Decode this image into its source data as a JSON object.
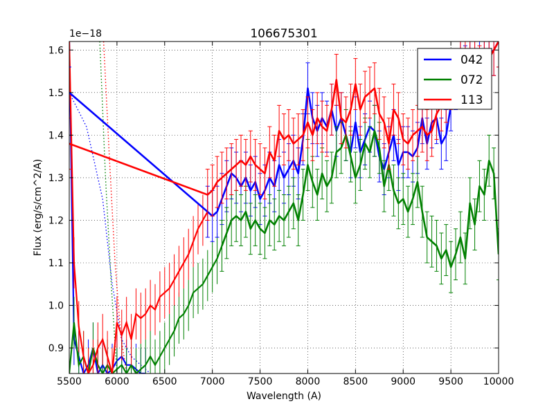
{
  "chart_data": {
    "type": "line",
    "title": "106675301",
    "xlabel": "Wavelength (A)",
    "ylabel": "Flux (erg/s/cm^2/A)",
    "y_offset_label": "1e−18",
    "xlim": [
      5500,
      10000
    ],
    "ylim": [
      0.84,
      1.62
    ],
    "xticks": [
      5500,
      6000,
      6500,
      7000,
      7500,
      8000,
      8500,
      9000,
      9500,
      10000
    ],
    "yticks": [
      0.9,
      1.0,
      1.1,
      1.2,
      1.3,
      1.4,
      1.5,
      1.6
    ],
    "ytick_labels": [
      "0.9",
      "1.0",
      "1.1",
      "1.2",
      "1.3",
      "1.4",
      "1.5",
      "1.6"
    ],
    "grid": true,
    "legend_position": "top-right",
    "series": [
      {
        "name": "042",
        "color": "#0000ff",
        "x": [
          5500,
          6950,
          7000,
          7050,
          7100,
          7150,
          7200,
          7250,
          7300,
          7350,
          7400,
          7450,
          7500,
          7550,
          7600,
          7650,
          7700,
          7750,
          7800,
          7850,
          7900,
          7950,
          8000,
          8050,
          8100,
          8150,
          8200,
          8250,
          8300,
          8350,
          8400,
          8450,
          8500,
          8550,
          8600,
          8650,
          8700,
          8750,
          8800,
          8850,
          8900,
          8950,
          9000,
          9050,
          9100,
          9150,
          9200,
          9250,
          9300,
          9350,
          9400,
          9450,
          9500,
          9550,
          9600,
          9650,
          9700,
          9750,
          9800,
          9850,
          9900,
          9950,
          10000
        ],
        "y": [
          1.5,
          1.22,
          1.21,
          1.22,
          1.25,
          1.28,
          1.31,
          1.3,
          1.28,
          1.3,
          1.27,
          1.29,
          1.25,
          1.27,
          1.3,
          1.28,
          1.33,
          1.3,
          1.32,
          1.34,
          1.31,
          1.39,
          1.51,
          1.44,
          1.41,
          1.44,
          1.42,
          1.46,
          1.41,
          1.44,
          1.4,
          1.36,
          1.43,
          1.36,
          1.39,
          1.42,
          1.41,
          1.35,
          1.32,
          1.36,
          1.4,
          1.33,
          1.36,
          1.36,
          1.35,
          1.37,
          1.44,
          1.38,
          1.43,
          1.44,
          1.38,
          1.4,
          1.47,
          1.52,
          1.57,
          1.55,
          1.58,
          1.59,
          1.56,
          1.58,
          1.59,
          1.6,
          1.62
        ],
        "err": 0.06
      },
      {
        "name": "072",
        "color": "#008000",
        "x": [
          7100,
          7150,
          7200,
          7250,
          7300,
          7350,
          7400,
          7450,
          7500,
          7550,
          7600,
          7650,
          7700,
          7750,
          7800,
          7850,
          7900,
          7950,
          8000,
          8050,
          8100,
          8150,
          8200,
          8250,
          8300,
          8350,
          8400,
          8450,
          8500,
          8550,
          8600,
          8650,
          8700,
          8750,
          8800,
          8850,
          8900,
          8950,
          9000,
          9050,
          9100,
          9150,
          9200,
          9250,
          9300,
          9350,
          9400,
          9450,
          9500,
          9550,
          9600,
          9650,
          9700,
          9750,
          9800,
          9850,
          9900,
          9950,
          10000
        ],
        "y": [
          1.14,
          1.17,
          1.2,
          1.21,
          1.2,
          1.22,
          1.18,
          1.2,
          1.18,
          1.17,
          1.2,
          1.19,
          1.21,
          1.2,
          1.22,
          1.24,
          1.2,
          1.26,
          1.33,
          1.29,
          1.26,
          1.31,
          1.28,
          1.3,
          1.36,
          1.37,
          1.4,
          1.35,
          1.3,
          1.33,
          1.38,
          1.36,
          1.41,
          1.37,
          1.28,
          1.33,
          1.27,
          1.24,
          1.25,
          1.22,
          1.25,
          1.29,
          1.22,
          1.16,
          1.15,
          1.14,
          1.11,
          1.13,
          1.09,
          1.12,
          1.16,
          1.11,
          1.24,
          1.19,
          1.28,
          1.26,
          1.34,
          1.31,
          1.12
        ],
        "err": 0.06
      },
      {
        "name": "113",
        "color": "#ff0000",
        "x": [
          5500,
          6950,
          7000,
          7050,
          7100,
          7150,
          7200,
          7250,
          7300,
          7350,
          7400,
          7450,
          7500,
          7550,
          7600,
          7650,
          7700,
          7750,
          7800,
          7850,
          7900,
          7950,
          8000,
          8050,
          8100,
          8150,
          8200,
          8250,
          8300,
          8350,
          8400,
          8450,
          8500,
          8550,
          8600,
          8650,
          8700,
          8750,
          8800,
          8850,
          8900,
          8950,
          9000,
          9050,
          9100,
          9150,
          9200,
          9250,
          9300,
          9350,
          9400,
          9450,
          9500,
          9550,
          9600,
          9650,
          9700,
          9750,
          9800,
          9850,
          9900,
          9950,
          10000
        ],
        "y": [
          1.38,
          1.26,
          1.27,
          1.29,
          1.3,
          1.31,
          1.32,
          1.33,
          1.34,
          1.33,
          1.35,
          1.33,
          1.32,
          1.31,
          1.36,
          1.34,
          1.41,
          1.39,
          1.4,
          1.38,
          1.39,
          1.4,
          1.43,
          1.4,
          1.44,
          1.42,
          1.41,
          1.46,
          1.53,
          1.44,
          1.43,
          1.46,
          1.52,
          1.46,
          1.49,
          1.5,
          1.51,
          1.45,
          1.43,
          1.38,
          1.46,
          1.44,
          1.39,
          1.38,
          1.4,
          1.41,
          1.42,
          1.4,
          1.41,
          1.45,
          1.47,
          1.49,
          1.52,
          1.54,
          1.56,
          1.57,
          1.59,
          1.58,
          1.55,
          1.57,
          1.58,
          1.6,
          1.62
        ],
        "err": 0.06
      }
    ],
    "dotted_segments": [
      {
        "series": "042",
        "x": [
          5500,
          5680,
          5850,
          5950,
          6050,
          6150,
          6250,
          6350
        ],
        "y": [
          1.5,
          1.42,
          1.25,
          1.05,
          0.92,
          0.88,
          0.86,
          0.84
        ]
      },
      {
        "series": "072",
        "x": [
          5820,
          5880,
          5940,
          6000
        ],
        "y": [
          1.62,
          1.3,
          1.05,
          0.84
        ]
      },
      {
        "series": "113",
        "x": [
          5860,
          5920,
          5980,
          6040,
          6100
        ],
        "y": [
          1.62,
          1.35,
          1.1,
          0.93,
          0.84
        ]
      }
    ],
    "low_region": [
      {
        "series": "042",
        "x": [
          5500,
          5550,
          5600,
          5650,
          5700,
          5750,
          5800,
          5850,
          5900,
          5950,
          6000,
          6050,
          6100,
          6150,
          6200,
          6250,
          6300
        ],
        "y": [
          1.62,
          0.92,
          0.88,
          0.84,
          0.86,
          0.9,
          0.84,
          0.86,
          0.84,
          0.85,
          0.87,
          0.88,
          0.86,
          0.86,
          0.85,
          0.84,
          0.84
        ]
      },
      {
        "series": "072",
        "x": [
          5500,
          5550,
          5600,
          5650,
          5700,
          5750,
          5800,
          5850,
          5900,
          5950,
          6000,
          6050,
          6100,
          6150,
          6200,
          6250,
          6300,
          6350,
          6400,
          6450,
          6500,
          6550,
          6600,
          6650,
          6700,
          6750,
          6800,
          6850,
          6900,
          6950,
          7000,
          7050,
          7100
        ],
        "y": [
          0.84,
          0.96,
          0.86,
          0.88,
          0.84,
          0.9,
          0.86,
          0.84,
          0.86,
          0.84,
          0.85,
          0.86,
          0.84,
          0.86,
          0.84,
          0.85,
          0.86,
          0.88,
          0.86,
          0.88,
          0.9,
          0.92,
          0.94,
          0.97,
          0.98,
          1.0,
          1.03,
          1.04,
          1.05,
          1.07,
          1.09,
          1.11,
          1.14
        ]
      },
      {
        "series": "113",
        "x": [
          5500,
          5550,
          5600,
          5650,
          5700,
          5750,
          5800,
          5850,
          5900,
          5950,
          6000,
          6050,
          6100,
          6150,
          6200,
          6250,
          6300,
          6350,
          6400,
          6450,
          6500,
          6550,
          6600,
          6650,
          6700,
          6750,
          6800,
          6850,
          6900,
          6950
        ],
        "y": [
          1.62,
          1.1,
          0.95,
          0.88,
          0.84,
          0.86,
          0.9,
          0.92,
          0.88,
          0.84,
          0.96,
          0.93,
          0.96,
          0.92,
          0.98,
          0.97,
          0.98,
          1.0,
          0.99,
          1.02,
          1.03,
          1.04,
          1.06,
          1.08,
          1.1,
          1.12,
          1.15,
          1.18,
          1.2,
          1.22
        ]
      }
    ]
  }
}
